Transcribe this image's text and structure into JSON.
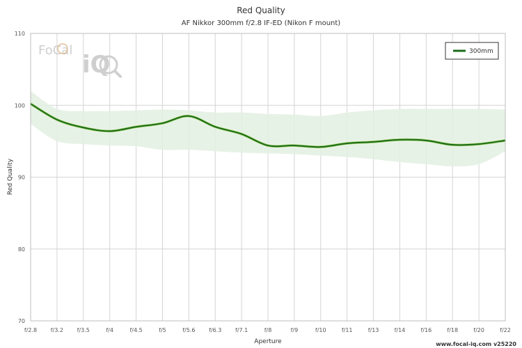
{
  "chart_data": {
    "type": "line",
    "title": "Red Quality",
    "subtitle": "AF Nikkor 300mm f/2.8 IF-ED (Nikon F mount)",
    "xlabel": "Aperture",
    "ylabel": "Red Quality",
    "ylim": [
      70,
      110
    ],
    "yticks": [
      "70",
      "80",
      "90",
      "100",
      "110"
    ],
    "categories": [
      "f/2.8",
      "f/3.2",
      "f/3.5",
      "f/4",
      "f/4.5",
      "f/5",
      "f/5.6",
      "f/6.3",
      "f/7.1",
      "f/8",
      "f/9",
      "f/10",
      "f/11",
      "f/13",
      "f/14",
      "f/16",
      "f/18",
      "f/20",
      "f/22"
    ],
    "grid": true,
    "legend_position": "top-right",
    "series": [
      {
        "name": "300mm",
        "color": "#1b6b1b",
        "values": [
          100.2,
          98.0,
          96.9,
          96.4,
          97.0,
          97.5,
          98.5,
          97.0,
          96.0,
          94.4,
          94.4,
          94.2,
          94.7,
          94.9,
          95.2,
          95.1,
          94.5,
          94.6,
          95.1
        ],
        "band_upper": [
          102.0,
          99.5,
          99.2,
          99.2,
          99.3,
          99.4,
          99.3,
          99.0,
          99.0,
          98.8,
          98.7,
          98.5,
          99.0,
          99.3,
          99.5,
          99.5,
          99.5,
          99.5,
          99.4
        ],
        "band_lower": [
          97.4,
          95.0,
          94.6,
          94.4,
          94.3,
          93.8,
          93.8,
          93.6,
          93.4,
          93.3,
          93.2,
          93.0,
          92.8,
          92.5,
          92.1,
          91.8,
          91.5,
          91.8,
          93.6
        ]
      }
    ]
  },
  "logo": {
    "text": "FoCal",
    "iq": "iQ"
  },
  "credit": "www.focal-iq.com v25220",
  "colors": {
    "band": "#e3f0e3",
    "grid": "#d4d4d4",
    "line": "#1b6b1b",
    "line_highlight": "#9acd5a"
  }
}
